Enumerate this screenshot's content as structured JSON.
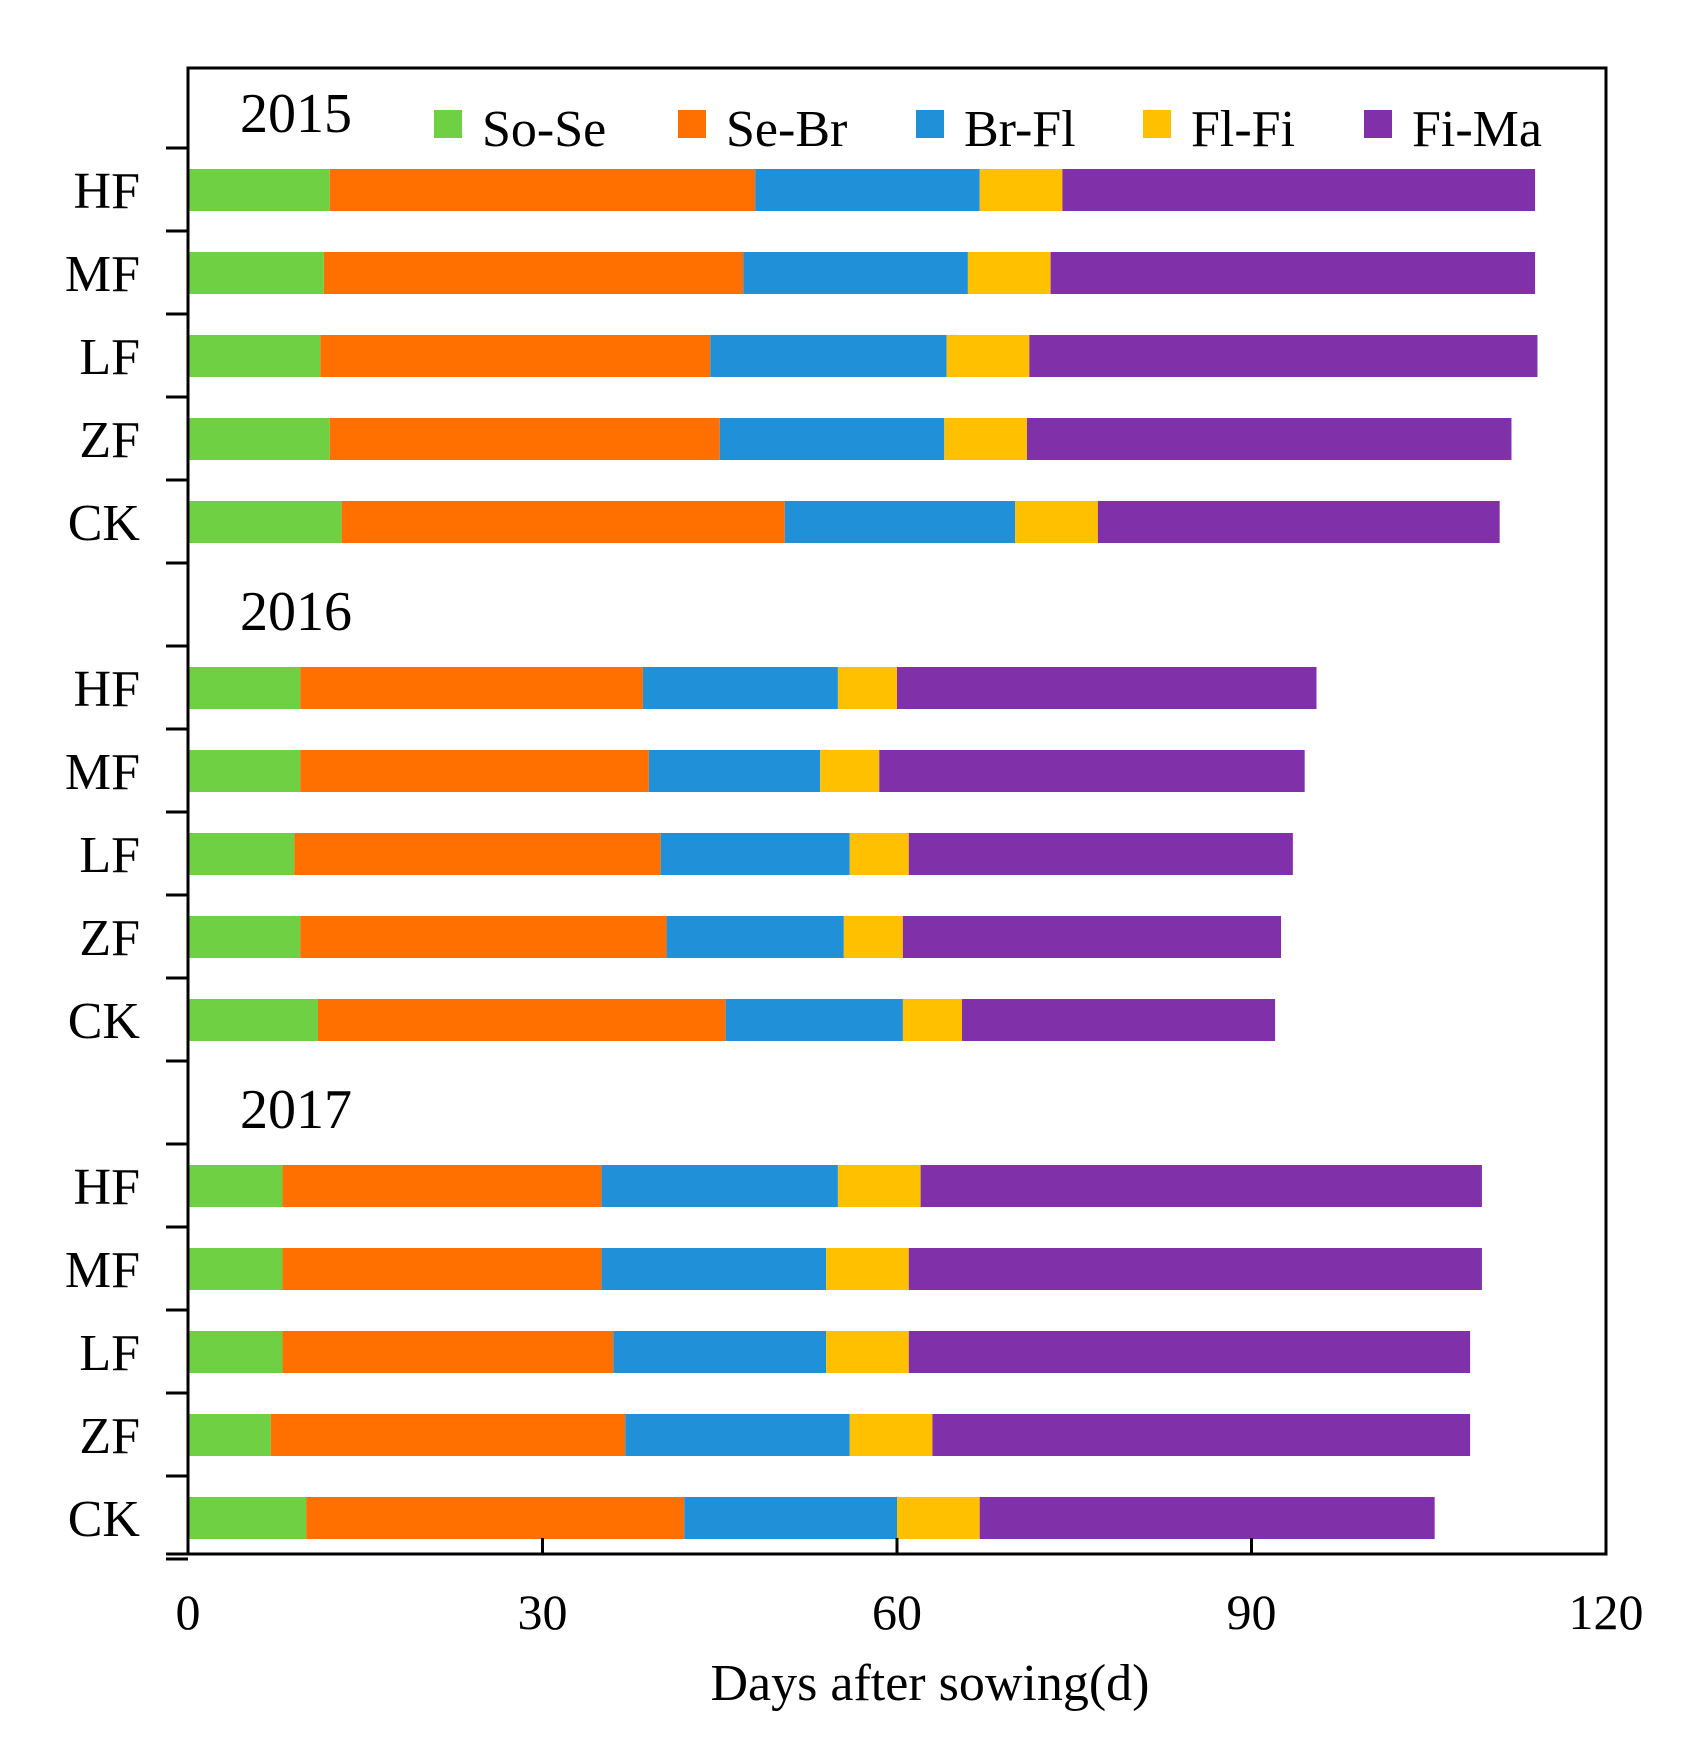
{
  "chart_data": {
    "type": "bar",
    "orientation": "horizontal",
    "stacked": true,
    "xlabel": "Days after sowing(d)",
    "ylabel": "",
    "xlim": [
      0,
      120
    ],
    "xticks": [
      0,
      30,
      60,
      90,
      120
    ],
    "legend_position": "top-right",
    "series": [
      {
        "name": "So-Se",
        "color": "#70D044"
      },
      {
        "name": "Se-Br",
        "color": "#FF7000"
      },
      {
        "name": "Br-Fl",
        "color": "#2090D8"
      },
      {
        "name": "Fl-Fi",
        "color": "#FFC000"
      },
      {
        "name": "Fi-Ma",
        "color": "#8030A8"
      }
    ],
    "groups": [
      {
        "year": "2015",
        "rows": [
          {
            "label": "HF",
            "values": [
              12,
              36,
              19,
              7,
              40
            ]
          },
          {
            "label": "MF",
            "values": [
              11.5,
              35.5,
              19,
              7,
              41
            ]
          },
          {
            "label": "LF",
            "values": [
              11.2,
              33,
              20,
              7,
              43
            ]
          },
          {
            "label": "ZF",
            "values": [
              12,
              33,
              19,
              7,
              41
            ]
          },
          {
            "label": "CK",
            "values": [
              13,
              37.5,
              19.5,
              7,
              34
            ]
          }
        ]
      },
      {
        "year": "2016",
        "rows": [
          {
            "label": "HF",
            "values": [
              9.5,
              29,
              16.5,
              5,
              35.5
            ]
          },
          {
            "label": "MF",
            "values": [
              9.5,
              29.5,
              14.5,
              5,
              36
            ]
          },
          {
            "label": "LF",
            "values": [
              9,
              31,
              16,
              5,
              32.5
            ]
          },
          {
            "label": "ZF",
            "values": [
              9.5,
              31,
              15,
              5,
              32
            ]
          },
          {
            "label": "CK",
            "values": [
              11,
              34.5,
              15,
              5,
              26.5
            ]
          }
        ]
      },
      {
        "year": "2017",
        "rows": [
          {
            "label": "HF",
            "values": [
              8,
              27,
              20,
              7,
              47.5
            ]
          },
          {
            "label": "MF",
            "values": [
              8,
              27,
              19,
              7,
              48.5
            ]
          },
          {
            "label": "LF",
            "values": [
              8,
              28,
              18,
              7,
              47.5
            ]
          },
          {
            "label": "ZF",
            "values": [
              7,
              30,
              19,
              7,
              45.5
            ]
          },
          {
            "label": "CK",
            "values": [
              10,
              32,
              18,
              7,
              38.5
            ]
          }
        ]
      }
    ]
  }
}
